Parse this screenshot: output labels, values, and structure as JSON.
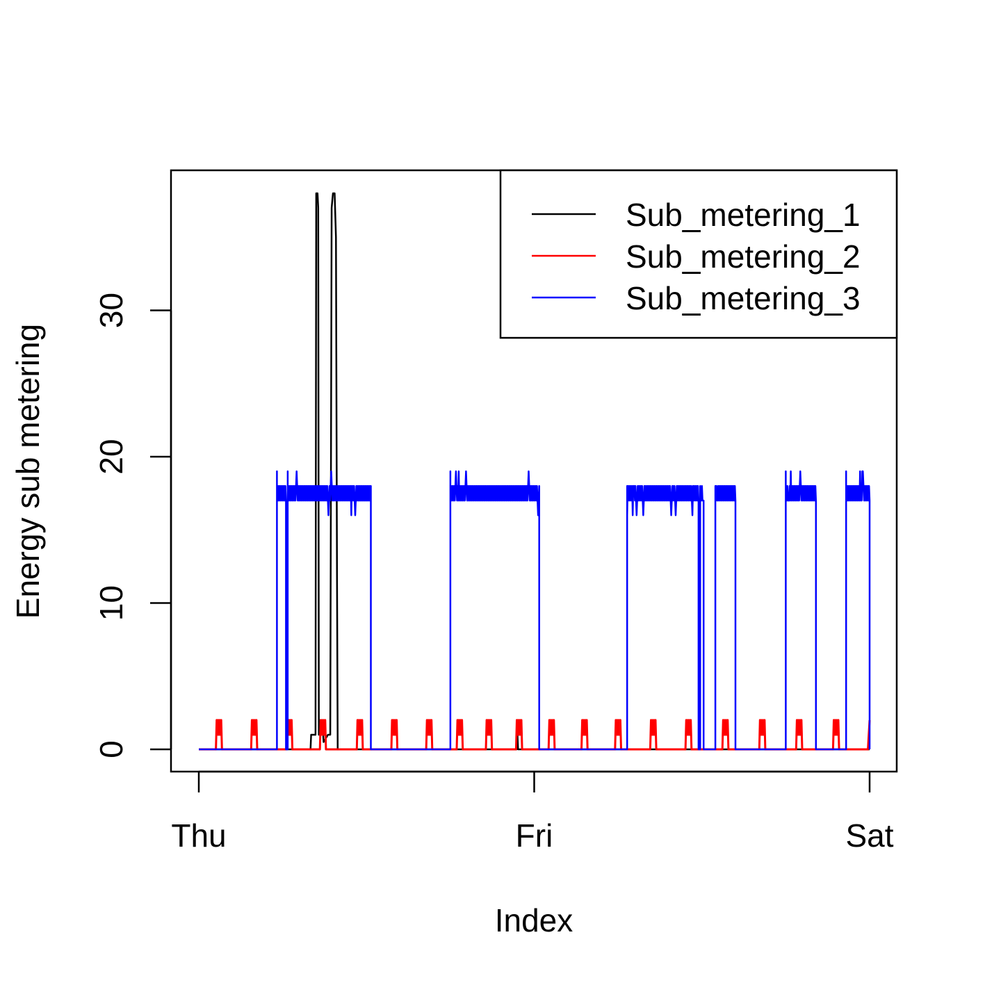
{
  "chart_data": {
    "type": "line",
    "title": "",
    "xlabel": "Index",
    "ylabel": "Energy sub metering",
    "x_ticks": [
      "Thu",
      "Fri",
      "Sat"
    ],
    "x_range": [
      "Thu",
      "Sat"
    ],
    "y_ticks": [
      "0",
      "10",
      "20",
      "30"
    ],
    "ylim": [
      0,
      38
    ],
    "legend_position": "top-right",
    "grid": false,
    "x_unit": "day (Thu 00:00 = 0, Sat 00:00 = 2)",
    "series": [
      {
        "name": "Sub_metering_1",
        "color": "#000000",
        "points": [
          [
            0,
            0
          ],
          [
            0.333,
            0
          ],
          [
            0.335,
            1
          ],
          [
            0.348,
            1
          ],
          [
            0.35,
            38
          ],
          [
            0.354,
            38
          ],
          [
            0.356,
            37
          ],
          [
            0.358,
            1
          ],
          [
            0.368,
            2
          ],
          [
            0.372,
            0.5
          ],
          [
            0.385,
            1
          ],
          [
            0.392,
            1
          ],
          [
            0.396,
            37
          ],
          [
            0.4,
            38
          ],
          [
            0.405,
            38
          ],
          [
            0.409,
            35
          ],
          [
            0.412,
            12
          ],
          [
            0.414,
            0
          ],
          [
            0.948,
            0
          ],
          [
            0.95,
            1
          ],
          [
            0.952,
            0
          ],
          [
            2.0,
            0
          ]
        ]
      },
      {
        "name": "Sub_metering_2",
        "color": "#ff0000",
        "spikes": [
          0.06,
          0.165,
          0.27,
          0.37,
          0.48,
          0.583,
          0.687,
          0.778,
          0.865,
          0.955,
          1.052,
          1.15,
          1.25,
          1.355,
          1.46,
          1.57,
          1.68,
          1.79,
          1.9
        ],
        "spike_value": 2,
        "end_value": 2
      },
      {
        "name": "Sub_metering_3",
        "color": "#0000ff",
        "blocks": [
          {
            "start": 0.233,
            "end": 0.26,
            "level": 17,
            "max": 19,
            "min": 16
          },
          {
            "start": 0.265,
            "end": 0.513,
            "level": 17.5,
            "max": 19,
            "min": 16
          },
          {
            "start": 0.75,
            "end": 1.015,
            "level": 17.5,
            "max": 19,
            "min": 16
          },
          {
            "start": 1.277,
            "end": 1.49,
            "level": 17.5,
            "max": 18,
            "min": 16
          },
          {
            "start": 1.495,
            "end": 1.505,
            "level": 17.5,
            "max": 18,
            "min": 17
          },
          {
            "start": 1.54,
            "end": 1.6,
            "level": 17.5,
            "max": 18,
            "min": 17
          },
          {
            "start": 1.75,
            "end": 1.84,
            "level": 17.5,
            "max": 19,
            "min": 17
          },
          {
            "start": 1.93,
            "end": 2.0,
            "level": 17.5,
            "max": 19,
            "min": 17
          }
        ]
      }
    ]
  }
}
